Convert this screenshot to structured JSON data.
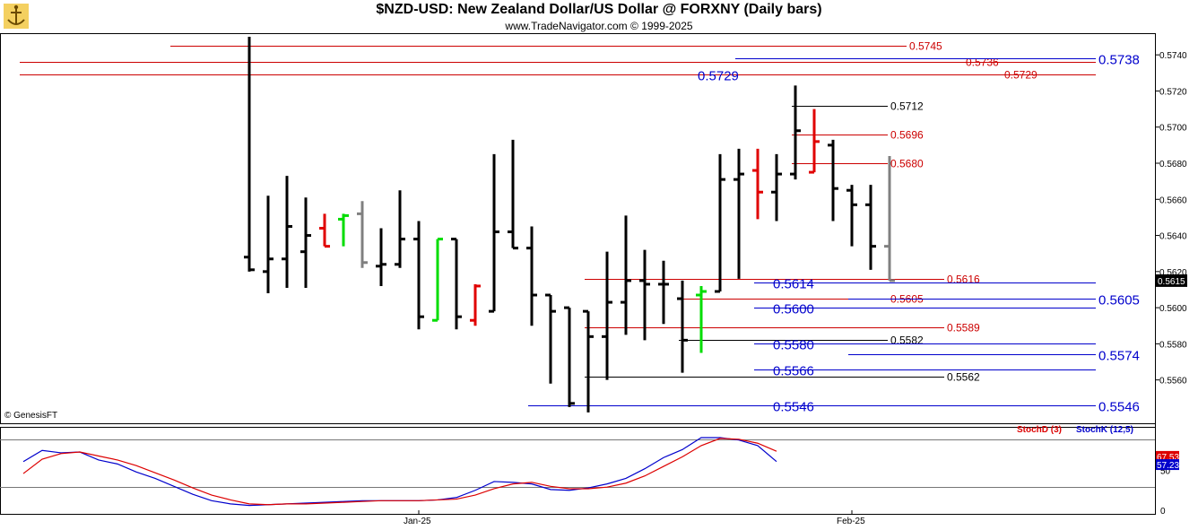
{
  "header": {
    "title": "$NZD-USD:  New Zealand Dollar/US Dollar @ FORXNY  (Daily bars)",
    "subtitle": "www.TradeNavigator.com © 1999-2025"
  },
  "watermark": "© GenesisFT",
  "colors": {
    "bar_black": "#000000",
    "bar_red": "#e00000",
    "bar_green": "#00dd00",
    "bar_gray": "#808080",
    "level_red": "#cc0000",
    "level_blue": "#0000cc",
    "level_black": "#000000",
    "stoch_d": "#dd0000",
    "stoch_k": "#0000cc"
  },
  "chart_data": [
    {
      "type": "ohlc",
      "ylim": [
        0.5536,
        0.5752
      ],
      "yticks": [
        "0.5740",
        "0.5720",
        "0.5700",
        "0.5680",
        "0.5660",
        "0.5640",
        "0.5620",
        "0.5600",
        "0.5580",
        "0.5560"
      ],
      "last_price": "0.5615",
      "xlabels": [
        {
          "label": "Jan-25",
          "bar": 9
        },
        {
          "label": "Feb-25",
          "bar": 32
        }
      ],
      "bars": [
        {
          "o": 0.5628,
          "h": 0.575,
          "l": 0.562,
          "c": 0.5621,
          "color": "black"
        },
        {
          "o": 0.562,
          "h": 0.5662,
          "l": 0.5608,
          "c": 0.5627,
          "color": "black"
        },
        {
          "o": 0.5627,
          "h": 0.5673,
          "l": 0.5611,
          "c": 0.5645,
          "color": "black"
        },
        {
          "o": 0.5631,
          "h": 0.5661,
          "l": 0.5611,
          "c": 0.564,
          "color": "black"
        },
        {
          "o": 0.5644,
          "h": 0.5652,
          "l": 0.5634,
          "c": 0.5634,
          "color": "red"
        },
        {
          "o": 0.5649,
          "h": 0.5652,
          "l": 0.5634,
          "c": 0.5651,
          "color": "green"
        },
        {
          "o": 0.5652,
          "h": 0.5659,
          "l": 0.5622,
          "c": 0.5625,
          "color": "gray"
        },
        {
          "o": 0.5623,
          "h": 0.5644,
          "l": 0.5612,
          "c": 0.5624,
          "color": "black"
        },
        {
          "o": 0.5624,
          "h": 0.5665,
          "l": 0.5622,
          "c": 0.5638,
          "color": "black"
        },
        {
          "o": 0.5638,
          "h": 0.5648,
          "l": 0.5588,
          "c": 0.5595,
          "color": "black"
        },
        {
          "o": 0.5593,
          "h": 0.5638,
          "l": 0.5593,
          "c": 0.5638,
          "color": "green"
        },
        {
          "o": 0.5638,
          "h": 0.5638,
          "l": 0.5588,
          "c": 0.5595,
          "color": "black"
        },
        {
          "o": 0.5593,
          "h": 0.5613,
          "l": 0.559,
          "c": 0.5612,
          "color": "red"
        },
        {
          "o": 0.5598,
          "h": 0.5685,
          "l": 0.5598,
          "c": 0.5642,
          "color": "black"
        },
        {
          "o": 0.5642,
          "h": 0.5693,
          "l": 0.5633,
          "c": 0.5633,
          "color": "black"
        },
        {
          "o": 0.5633,
          "h": 0.5645,
          "l": 0.559,
          "c": 0.5607,
          "color": "black"
        },
        {
          "o": 0.5607,
          "h": 0.5607,
          "l": 0.5558,
          "c": 0.5598,
          "color": "black"
        },
        {
          "o": 0.56,
          "h": 0.56,
          "l": 0.5545,
          "c": 0.5547,
          "color": "black"
        },
        {
          "o": 0.5598,
          "h": 0.5598,
          "l": 0.5542,
          "c": 0.5584,
          "color": "black"
        },
        {
          "o": 0.5584,
          "h": 0.5631,
          "l": 0.556,
          "c": 0.5603,
          "color": "black"
        },
        {
          "o": 0.5603,
          "h": 0.5651,
          "l": 0.5585,
          "c": 0.5615,
          "color": "black"
        },
        {
          "o": 0.5615,
          "h": 0.5632,
          "l": 0.5582,
          "c": 0.5613,
          "color": "black"
        },
        {
          "o": 0.5613,
          "h": 0.5626,
          "l": 0.5591,
          "c": 0.5613,
          "color": "black"
        },
        {
          "o": 0.5605,
          "h": 0.5615,
          "l": 0.5564,
          "c": 0.5582,
          "color": "black"
        },
        {
          "o": 0.5607,
          "h": 0.5612,
          "l": 0.5575,
          "c": 0.5609,
          "color": "green"
        },
        {
          "o": 0.5609,
          "h": 0.5685,
          "l": 0.5609,
          "c": 0.5671,
          "color": "black"
        },
        {
          "o": 0.5671,
          "h": 0.5688,
          "l": 0.5616,
          "c": 0.5674,
          "color": "black"
        },
        {
          "o": 0.5676,
          "h": 0.5688,
          "l": 0.5649,
          "c": 0.5664,
          "color": "red"
        },
        {
          "o": 0.5664,
          "h": 0.5685,
          "l": 0.5648,
          "c": 0.5674,
          "color": "black"
        },
        {
          "o": 0.5674,
          "h": 0.5723,
          "l": 0.5671,
          "c": 0.5698,
          "color": "black"
        },
        {
          "o": 0.5675,
          "h": 0.571,
          "l": 0.5675,
          "c": 0.5692,
          "color": "red"
        },
        {
          "o": 0.569,
          "h": 0.5693,
          "l": 0.5648,
          "c": 0.5666,
          "color": "black"
        },
        {
          "o": 0.5665,
          "h": 0.5668,
          "l": 0.5634,
          "c": 0.5657,
          "color": "black"
        },
        {
          "o": 0.5657,
          "h": 0.5668,
          "l": 0.5621,
          "c": 0.5634,
          "color": "black"
        },
        {
          "o": 0.5634,
          "h": 0.5684,
          "l": 0.5615,
          "c": 0.5615,
          "color": "gray"
        }
      ],
      "levels": [
        {
          "value": 0.5745,
          "label": "0.5745",
          "color": "red",
          "from_bar": -4
        },
        {
          "value": 0.5736,
          "label": "0.5736",
          "color": "red",
          "from_bar": -12
        },
        {
          "value": 0.5738,
          "label": "0.5738",
          "color": "blue",
          "from_bar": 26,
          "big": true
        },
        {
          "value": 0.5729,
          "label": "0.5729",
          "color": "red",
          "from_bar": -12,
          "big_left_label": "0.5729"
        },
        {
          "value": 0.5712,
          "label": "0.5712",
          "color": "black",
          "from_bar": 29
        },
        {
          "value": 0.5696,
          "label": "0.5696",
          "color": "red",
          "from_bar": 29
        },
        {
          "value": 0.568,
          "label": "0.5680",
          "color": "red",
          "from_bar": 29
        },
        {
          "value": 0.5616,
          "label": "0.5616",
          "color": "red",
          "from_bar": 18
        },
        {
          "value": 0.5614,
          "label": "",
          "color": "blue",
          "from_bar": 27,
          "big_left_label": "0.5614"
        },
        {
          "value": 0.5605,
          "label": "0.5605",
          "color": "red",
          "from_bar": 23
        },
        {
          "value": 0.56,
          "label": "",
          "color": "blue",
          "from_bar": 27,
          "big_left_label": "0.5600"
        },
        {
          "value": 0.5605,
          "label": "0.5605",
          "color": "blue",
          "from_bar": 32,
          "big": true
        },
        {
          "value": 0.5589,
          "label": "0.5589",
          "color": "red",
          "from_bar": 18
        },
        {
          "value": 0.5582,
          "label": "0.5582",
          "color": "black",
          "from_bar": 23
        },
        {
          "value": 0.558,
          "label": "",
          "color": "blue",
          "from_bar": 27,
          "big_left_label": "0.5580"
        },
        {
          "value": 0.5574,
          "label": "0.5574",
          "color": "blue",
          "from_bar": 32,
          "big": true
        },
        {
          "value": 0.5566,
          "label": "",
          "color": "blue",
          "from_bar": 27,
          "big_left_label": "0.5566"
        },
        {
          "value": 0.5562,
          "label": "0.5562",
          "color": "black",
          "from_bar": 18
        },
        {
          "value": 0.5546,
          "label": "0.5546",
          "color": "blue",
          "from_bar": 15,
          "big": true,
          "big_left_label": "0.5546"
        }
      ]
    },
    {
      "type": "line",
      "ylim": [
        0,
        100
      ],
      "ytick_labels": [
        "50",
        "0"
      ],
      "legend": [
        {
          "name": "StochD (3)",
          "color": "red"
        },
        {
          "name": "StochK (12,5)",
          "color": "blue"
        }
      ],
      "last_values": {
        "d": "67.53",
        "k": "57.23"
      },
      "series": [
        {
          "name": "StochK (12,5)",
          "color": "blue",
          "values": [
            [
              -12,
              61
            ],
            [
              -11,
              75
            ],
            [
              -10,
              72
            ],
            [
              -9,
              73
            ],
            [
              -8,
              63
            ],
            [
              -7,
              58
            ],
            [
              -6,
              48
            ],
            [
              -5,
              40
            ],
            [
              -4,
              30
            ],
            [
              -3,
              20
            ],
            [
              -2,
              12
            ],
            [
              -1,
              8
            ],
            [
              0,
              6
            ],
            [
              1,
              7
            ],
            [
              2,
              8
            ],
            [
              3,
              9
            ],
            [
              4,
              10
            ],
            [
              5,
              11
            ],
            [
              6,
              12
            ],
            [
              7,
              12
            ],
            [
              8,
              12
            ],
            [
              9,
              12
            ],
            [
              10,
              13
            ],
            [
              11,
              16
            ],
            [
              12,
              25
            ],
            [
              13,
              36
            ],
            [
              14,
              35
            ],
            [
              15,
              33
            ],
            [
              16,
              26
            ],
            [
              17,
              25
            ],
            [
              18,
              28
            ],
            [
              19,
              33
            ],
            [
              20,
              40
            ],
            [
              21,
              52
            ],
            [
              22,
              66
            ],
            [
              23,
              76
            ],
            [
              24,
              91
            ],
            [
              25,
              91
            ],
            [
              26,
              88
            ],
            [
              27,
              81
            ],
            [
              28,
              61
            ]
          ]
        },
        {
          "name": "StochD (3)",
          "color": "red",
          "values": [
            [
              -12,
              46
            ],
            [
              -11,
              64
            ],
            [
              -10,
              71
            ],
            [
              -9,
              73
            ],
            [
              -8,
              68
            ],
            [
              -7,
              63
            ],
            [
              -6,
              56
            ],
            [
              -5,
              47
            ],
            [
              -4,
              38
            ],
            [
              -3,
              28
            ],
            [
              -2,
              19
            ],
            [
              -1,
              13
            ],
            [
              0,
              8
            ],
            [
              1,
              7
            ],
            [
              2,
              8
            ],
            [
              3,
              8
            ],
            [
              4,
              9
            ],
            [
              5,
              10
            ],
            [
              6,
              11
            ],
            [
              7,
              12
            ],
            [
              8,
              12
            ],
            [
              9,
              12
            ],
            [
              10,
              13
            ],
            [
              11,
              14
            ],
            [
              12,
              19
            ],
            [
              13,
              27
            ],
            [
              14,
              33
            ],
            [
              15,
              35
            ],
            [
              16,
              30
            ],
            [
              17,
              27
            ],
            [
              18,
              27
            ],
            [
              19,
              29
            ],
            [
              20,
              34
            ],
            [
              21,
              43
            ],
            [
              22,
              55
            ],
            [
              23,
              67
            ],
            [
              24,
              81
            ],
            [
              25,
              90
            ],
            [
              26,
              89
            ],
            [
              27,
              84
            ],
            [
              28,
              74
            ]
          ]
        }
      ]
    }
  ]
}
